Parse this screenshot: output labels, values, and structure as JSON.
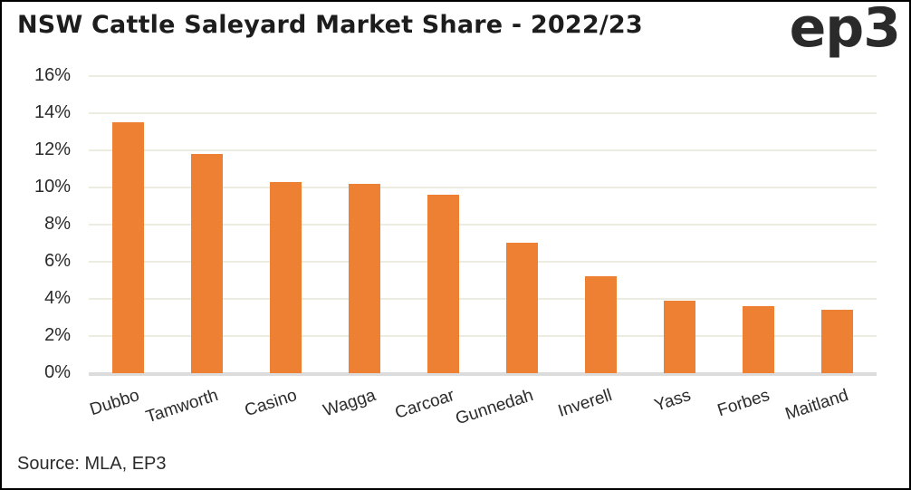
{
  "header": {
    "title": "NSW Cattle Saleyard Market Share - 2022/23",
    "logo_text": "ep3"
  },
  "footer": {
    "source": "Source: MLA, EP3"
  },
  "colors": {
    "bar": "#ED8033",
    "gridline": "#EDECE1",
    "baseline": "#DCDCDC",
    "title_text": "#1D1D1D",
    "axis_text": "#2B2B2B",
    "logo_text": "#2A2A2A"
  },
  "chart_data": {
    "type": "bar",
    "title": "NSW Cattle Saleyard Market Share - 2022/23",
    "categories": [
      "Dubbo",
      "Tamworth",
      "Casino",
      "Wagga",
      "Carcoar",
      "Gunnedah",
      "Inverell",
      "Yass",
      "Forbes",
      "Maitland"
    ],
    "values": [
      13.5,
      11.8,
      10.3,
      10.2,
      9.6,
      7.0,
      5.2,
      3.9,
      3.6,
      3.4
    ],
    "unit": "%",
    "xlabel": "",
    "ylabel": "",
    "ylim": [
      0,
      16
    ],
    "ytick_step": 2,
    "ytick_labels": [
      "0%",
      "2%",
      "4%",
      "6%",
      "8%",
      "10%",
      "12%",
      "14%",
      "16%"
    ],
    "grid": true,
    "legend": false,
    "source": "Source: MLA, EP3"
  }
}
